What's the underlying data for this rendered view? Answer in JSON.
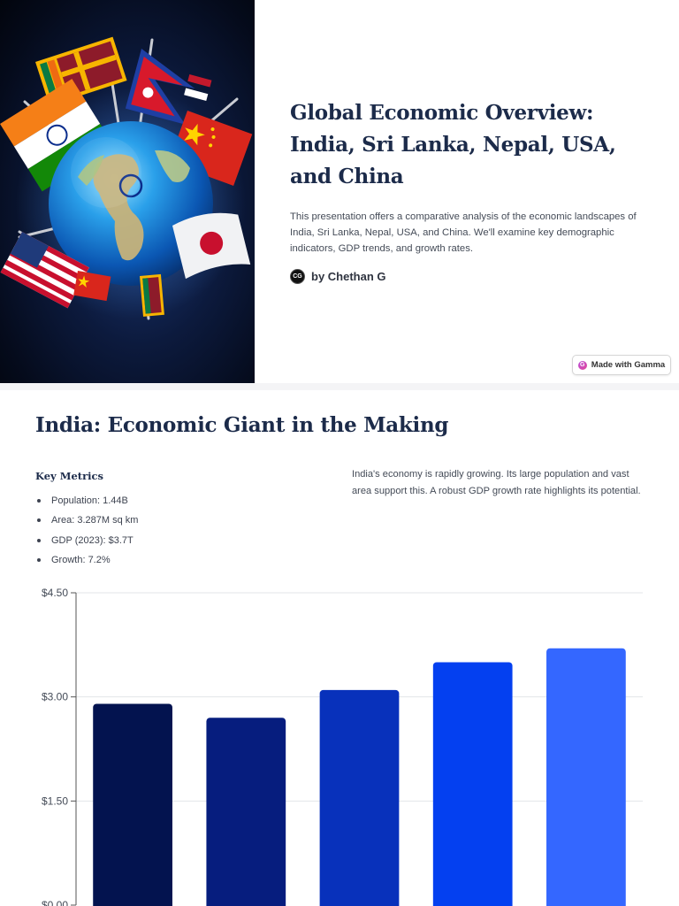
{
  "slide1": {
    "title": "Global Economic Overview: India, Sri Lanka, Nepal, USA, and China",
    "description": "This presentation offers a comparative analysis of the economic landscapes of India, Sri Lanka, Nepal, USA, and China. We'll examine key demographic indicators, GDP trends, and growth rates.",
    "author_initials": "CG",
    "author": "by Chethan G",
    "badge": "Made with Gamma",
    "hero_image_icon": "globe-with-flags-illustration"
  },
  "slide2": {
    "title": "India: Economic Giant in the Making",
    "metrics_heading": "Key Metrics",
    "metrics": [
      "Population: 1.44B",
      "Area: 3.287M sq km",
      "GDP (2023): $3.7T",
      "Growth: 7.2%"
    ],
    "description": "India's economy is rapidly growing. Its large population and vast area support this. A robust GDP growth rate highlights its potential."
  },
  "colors": {
    "title": "#1c2b4a",
    "bars": [
      "#03134f",
      "#061d7e",
      "#0831bb",
      "#0440f0",
      "#3467ff"
    ]
  },
  "chart_data": {
    "type": "bar",
    "values": [
      2.9,
      2.7,
      3.1,
      3.5,
      3.7
    ],
    "y_ticks": [
      "$0.00",
      "$1.50",
      "$3.00",
      "$4.50"
    ],
    "ylim": [
      0,
      4.5
    ],
    "grid": true
  }
}
